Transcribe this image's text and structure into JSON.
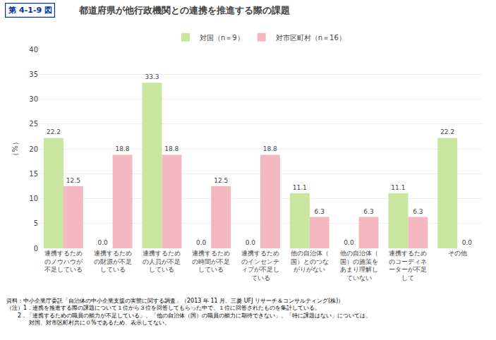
{
  "chart_data": {
    "type": "bar",
    "title": "都道府県が他行政機関との連携を推進する際の課題",
    "ylabel": "（%）",
    "categories": [
      "連携するためのノウハウが不足している",
      "連携するための財源が不足している",
      "連携するための人員が不足している",
      "連携するための時間が不足している",
      "連携するためのインセンティブが不足している",
      "他の自治体（国）とのつながりがない",
      "他の自治体（国）の施策をあまり理解していない",
      "連携するためのコーディネーターが不足して",
      "その他"
    ],
    "series": [
      {
        "name": "対国（n＝9）",
        "color": "#c8e6a0",
        "values": [
          22.2,
          0.0,
          33.3,
          0.0,
          0.0,
          11.1,
          0.0,
          11.1,
          22.2
        ],
        "value_labels": [
          "22.2",
          "0.0",
          "33.3",
          "0.0",
          "0.0",
          "11.1",
          "0.0",
          "11.1",
          "22.2"
        ]
      },
      {
        "name": "対市区町村（n＝16）",
        "color": "#f4b8c0",
        "values": [
          12.5,
          18.8,
          18.8,
          12.5,
          18.8,
          6.3,
          6.3,
          6.3,
          0.0
        ],
        "value_labels": [
          "12.5",
          "18.8",
          "18.8",
          "12.5",
          "18.8",
          "6.3",
          "6.3",
          "6.3",
          "0.0"
        ]
      }
    ],
    "ylim": [
      0,
      40
    ],
    "yticks": [
      0,
      5,
      10,
      15,
      20,
      25,
      30,
      35,
      40
    ],
    "grid": true,
    "legend": "top",
    "data_labels": true,
    "annotations": [
      "第 4-1-9 図",
      "資料：中小企業庁委託「自治体の中小企業支援の実態に関する調査」（2013 年 11 月、三菱 UFJ リサーチ＆コンサルティング(株)）",
      "（注）1．連携を推進する際の課題について１位から３位を回答してもらった中で、１位に回答されたものを集計している。",
      "　　2．「連携するための職員の能力が不足している」、「他の自治体（国）の職員の能力に期待できない」、「特に課題はない」については、",
      "　　　　対国、対市区町村共に０%であるため、表示してない。"
    ]
  }
}
